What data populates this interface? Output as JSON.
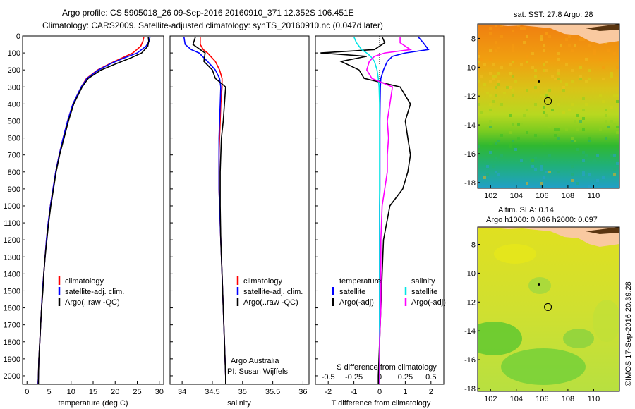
{
  "header": {
    "line1": "Argo profile: CS 5905018_26 09-Sep-2016 20160910_371 12.352S 106.451E",
    "line2": "Climatology: CARS2009. Satellite-adjusted climatology: synTS_20160910.nc (0.047d later)"
  },
  "chart_data": [
    {
      "type": "line",
      "panel": "temperature",
      "xlabel": "temperature (deg C)",
      "xlim": [
        -1,
        31
      ],
      "xticks": [
        "0",
        "5",
        "10",
        "15",
        "20",
        "25",
        "30"
      ],
      "ylim": [
        2050,
        0
      ],
      "yticks": [
        "0",
        "100",
        "200",
        "300",
        "400",
        "500",
        "600",
        "700",
        "800",
        "900",
        "1000",
        "1100",
        "1200",
        "1300",
        "1400",
        "1500",
        "1600",
        "1700",
        "1800",
        "1900",
        "2000"
      ],
      "depth": [
        5,
        30,
        60,
        100,
        130,
        160,
        200,
        250,
        300,
        400,
        500,
        600,
        700,
        800,
        900,
        1000,
        1100,
        1200,
        1300,
        1400,
        1500,
        1600,
        1700,
        1800,
        1900,
        2000,
        2050
      ],
      "series": [
        {
          "name": "climatology",
          "color": "#ff0000",
          "values": [
            26.5,
            26.3,
            25.8,
            24.0,
            21.5,
            19.0,
            16.0,
            13.5,
            12.3,
            10.4,
            9.2,
            8.2,
            7.3,
            6.5,
            5.9,
            5.3,
            4.8,
            4.4,
            4.1,
            3.8,
            3.5,
            3.3,
            3.1,
            2.9,
            2.7,
            2.6,
            2.5
          ]
        },
        {
          "name": "satellite-adj. clim.",
          "color": "#0000ff",
          "values": [
            27.9,
            27.7,
            27.0,
            25.0,
            22.0,
            19.2,
            16.2,
            13.6,
            12.3,
            10.4,
            9.2,
            8.2,
            7.3,
            6.5,
            5.9,
            5.3,
            4.8,
            4.4,
            4.1,
            3.8,
            3.5,
            3.3,
            3.1,
            2.9,
            2.7,
            2.6,
            2.5
          ]
        },
        {
          "name": "Argo(..raw -QC)",
          "color": "#000000",
          "values": [
            27.5,
            27.6,
            27.4,
            26.0,
            23.5,
            20.5,
            16.8,
            13.9,
            12.5,
            10.6,
            9.4,
            8.4,
            7.4,
            6.6,
            6.0,
            5.4,
            4.9,
            4.5,
            4.1,
            3.8,
            3.6,
            3.3,
            3.1,
            2.9,
            2.7,
            2.6,
            2.6
          ]
        }
      ],
      "legend": [
        "climatology",
        "satellite-adj. clim.",
        "Argo(..raw -QC)"
      ]
    },
    {
      "type": "line",
      "panel": "salinity",
      "xlabel": "salinity",
      "xlim": [
        33.8,
        36.1
      ],
      "xticks": [
        "34",
        "34.5",
        "35",
        "35.5",
        "36"
      ],
      "ylim": [
        2050,
        0
      ],
      "depth": [
        5,
        50,
        80,
        100,
        150,
        200,
        250,
        300,
        400,
        500,
        600,
        700,
        800,
        900,
        1000,
        1200,
        1400,
        1600,
        1800,
        2000,
        2050
      ],
      "series": [
        {
          "name": "climatology",
          "color": "#ff0000",
          "values": [
            34.3,
            34.3,
            34.35,
            34.42,
            34.55,
            34.62,
            34.66,
            34.66,
            34.64,
            34.63,
            34.62,
            34.61,
            34.61,
            34.61,
            34.62,
            34.64,
            34.66,
            34.68,
            34.7,
            34.72,
            34.72
          ]
        },
        {
          "name": "satellite-adj. clim.",
          "color": "#0000ff",
          "values": [
            34.03,
            34.05,
            34.15,
            34.28,
            34.42,
            34.55,
            34.62,
            34.64,
            34.63,
            34.62,
            34.61,
            34.61,
            34.61,
            34.61,
            34.62,
            34.64,
            34.66,
            34.68,
            34.7,
            34.72,
            34.72
          ]
        },
        {
          "name": "Argo(..raw -QC)",
          "color": "#000000",
          "values": [
            34.22,
            34.18,
            34.3,
            34.38,
            34.36,
            34.5,
            34.55,
            34.72,
            34.7,
            34.68,
            34.65,
            34.64,
            34.63,
            34.63,
            34.63,
            34.64,
            34.66,
            34.68,
            34.7,
            34.72,
            34.72
          ]
        }
      ],
      "legend": [
        "climatology",
        "satellite-adj. clim.",
        "Argo(..raw -QC)"
      ],
      "annotation": [
        "Argo Australia",
        "PI: Susan Wijffels"
      ]
    },
    {
      "type": "line",
      "panel": "difference",
      "xlabel": "T difference from climatology",
      "top_xlabel": "S difference from climatology",
      "xlim": [
        -2.5,
        2.5
      ],
      "xticks": [
        "-2",
        "-1",
        "0",
        "1",
        "2"
      ],
      "top_xticks": [
        "-0.5",
        "-0.25",
        "0",
        "0.25",
        "0.5"
      ],
      "ylim": [
        2050,
        0
      ],
      "depth": [
        5,
        40,
        80,
        100,
        120,
        150,
        200,
        250,
        300,
        400,
        500,
        600,
        700,
        800,
        900,
        1000,
        1200,
        1400,
        1600,
        1800,
        2000,
        2050
      ],
      "series": [
        {
          "name": "temperature satellite",
          "color": "#0000ff",
          "values": [
            1.5,
            1.7,
            1.9,
            1.0,
            0.5,
            0.3,
            0.15,
            0.05,
            0.03,
            0.02,
            0.01,
            0.01,
            0.01,
            0.01,
            0.01,
            0.0,
            0.0,
            0.0,
            0.0,
            0.0,
            0.0,
            0.0
          ]
        },
        {
          "name": "temperature Argo(-adj)",
          "color": "#000000",
          "values": [
            0.1,
            0.2,
            -0.2,
            -2.3,
            -0.5,
            -1.5,
            -0.8,
            -0.6,
            0.8,
            1.2,
            1.0,
            1.1,
            1.2,
            1.1,
            0.9,
            0.4,
            0.15,
            0.1,
            0.05,
            0.0,
            -0.05,
            -0.05
          ]
        },
        {
          "name": "salinity satellite",
          "color": "#00e5e5",
          "values": [
            -1.0,
            -0.9,
            -0.7,
            -0.5,
            -0.35,
            -0.2,
            -0.1,
            -0.05,
            -0.02,
            0.0,
            0.0,
            0.0,
            0.0,
            0.0,
            0.0,
            0.0,
            0.0,
            0.0,
            0.0,
            0.0,
            0.0,
            0.0
          ]
        },
        {
          "name": "salinity Argo(-adj)",
          "color": "#ff00ff",
          "values": [
            0.8,
            0.8,
            1.2,
            0.2,
            -0.2,
            -0.4,
            -0.5,
            -0.3,
            0.5,
            0.4,
            0.3,
            0.35,
            0.3,
            0.3,
            0.2,
            0.1,
            0.05,
            0.05,
            0.05,
            0.0,
            0.0,
            0.0
          ]
        }
      ],
      "legend_titles": [
        "temperature",
        "salinity"
      ],
      "legend": [
        "satellite",
        "Argo(-adj)",
        "satellite",
        "Argo(-adj)"
      ]
    },
    {
      "type": "heatmap",
      "panel": "sst-map",
      "title": "sat. SST: 27.8 Argo: 28",
      "xlim": [
        101,
        112
      ],
      "ylim": [
        -18.4,
        -7
      ],
      "xticks": [
        "102",
        "104",
        "106",
        "108",
        "110"
      ],
      "yticks": [
        "-8",
        "-10",
        "-12",
        "-14",
        "-16",
        "-18"
      ],
      "float_position": {
        "lon": 106.45,
        "lat": -12.35
      }
    },
    {
      "type": "heatmap",
      "panel": "sla-map",
      "title": "Altim. SLA: 0.14",
      "subtitle": "Argo h1000: 0.086 h2000: 0.097",
      "xlim": [
        101,
        112
      ],
      "ylim": [
        -18.2,
        -6.8
      ],
      "xticks": [
        "102",
        "104",
        "106",
        "108",
        "110"
      ],
      "yticks": [
        "-8",
        "-10",
        "-12",
        "-14",
        "-16",
        "-18"
      ],
      "float_position": {
        "lon": 106.45,
        "lat": -12.35
      }
    }
  ],
  "side_label": "©IMOS 17-Sep-2016 20:39:28"
}
